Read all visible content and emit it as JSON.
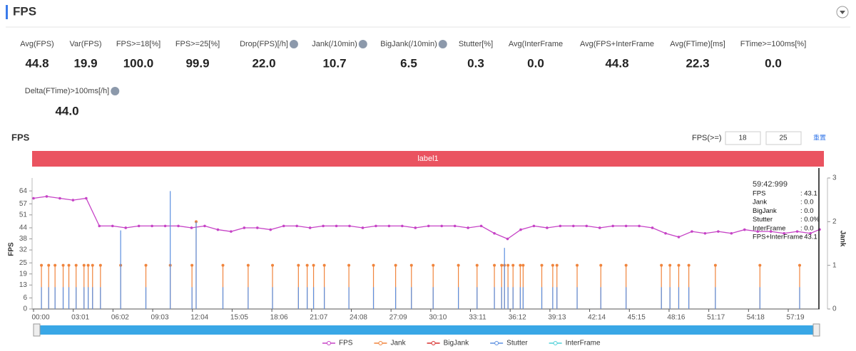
{
  "header": {
    "title": "FPS"
  },
  "metrics": [
    {
      "label": "Avg(FPS)",
      "value": "44.8",
      "help": false
    },
    {
      "label": "Var(FPS)",
      "value": "19.9",
      "help": false
    },
    {
      "label": "FPS>=18[%]",
      "value": "100.0",
      "help": false
    },
    {
      "label": "FPS>=25[%]",
      "value": "99.9",
      "help": false
    },
    {
      "label": "Drop(FPS)[/h]",
      "value": "22.0",
      "help": true
    },
    {
      "label": "Jank(/10min)",
      "value": "10.7",
      "help": true
    },
    {
      "label": "BigJank(/10min)",
      "value": "6.5",
      "help": true
    },
    {
      "label": "Stutter[%]",
      "value": "0.3",
      "help": false
    },
    {
      "label": "Avg(InterFrame",
      "value": "0.0",
      "help": false
    },
    {
      "label": "Avg(FPS+InterFrame",
      "value": "44.8",
      "help": false
    },
    {
      "label": "Avg(FTime)[ms]",
      "value": "22.3",
      "help": false
    },
    {
      "label": "FTime>=100ms[%]",
      "value": "0.0",
      "help": false
    },
    {
      "label": "Delta(FTime)>100ms[/h]",
      "value": "44.0",
      "help": true
    }
  ],
  "controls": {
    "label": "FPS(>=)",
    "inputs": [
      18,
      25
    ],
    "reset": "重置"
  },
  "band": {
    "label": "label1"
  },
  "tooltip": {
    "time": "59:42:999",
    "rows": [
      {
        "label": "FPS",
        "value": ": 43.1"
      },
      {
        "label": "Jank",
        "value": ": 0.0"
      },
      {
        "label": "BigJank",
        "value": ": 0.0"
      },
      {
        "label": "Stutter",
        "value": ": 0.0%"
      },
      {
        "label": "InterFrame",
        "value": ": 0.0"
      },
      {
        "label": "FPS+InterFrame",
        "value": ": 43.1"
      }
    ]
  },
  "chart_data": {
    "type": "line",
    "title": "FPS",
    "y_label": "FPS",
    "y2_label": "Jank",
    "xlim": [
      0,
      3582
    ],
    "ylim": [
      0,
      71
    ],
    "y2lim": [
      0,
      3
    ],
    "xticks": [
      {
        "value": 0,
        "label": "00:00"
      },
      {
        "value": 181,
        "label": "03:01"
      },
      {
        "value": 362,
        "label": "06:02"
      },
      {
        "value": 543,
        "label": "09:03"
      },
      {
        "value": 724,
        "label": "12:04"
      },
      {
        "value": 905,
        "label": "15:05"
      },
      {
        "value": 1086,
        "label": "18:06"
      },
      {
        "value": 1267,
        "label": "21:07"
      },
      {
        "value": 1448,
        "label": "24:08"
      },
      {
        "value": 1629,
        "label": "27:09"
      },
      {
        "value": 1810,
        "label": "30:10"
      },
      {
        "value": 1991,
        "label": "33:11"
      },
      {
        "value": 2172,
        "label": "36:12"
      },
      {
        "value": 2353,
        "label": "39:13"
      },
      {
        "value": 2534,
        "label": "42:14"
      },
      {
        "value": 2715,
        "label": "45:15"
      },
      {
        "value": 2896,
        "label": "48:16"
      },
      {
        "value": 3077,
        "label": "51:17"
      },
      {
        "value": 3258,
        "label": "54:18"
      },
      {
        "value": 3439,
        "label": "57:19"
      }
    ],
    "yticks": [
      0,
      6,
      13,
      19,
      25,
      32,
      38,
      44,
      51,
      57,
      64
    ],
    "y2ticks": [
      0,
      1,
      2,
      3
    ],
    "series": [
      {
        "name": "FPS",
        "color": "#c643c6",
        "x": [
          0,
          60,
          120,
          180,
          240,
          300,
          360,
          420,
          480,
          540,
          600,
          660,
          720,
          780,
          840,
          900,
          960,
          1020,
          1080,
          1140,
          1200,
          1260,
          1320,
          1380,
          1440,
          1500,
          1560,
          1620,
          1680,
          1740,
          1800,
          1860,
          1920,
          1980,
          2040,
          2100,
          2160,
          2220,
          2280,
          2340,
          2400,
          2460,
          2520,
          2580,
          2640,
          2700,
          2760,
          2820,
          2880,
          2940,
          3000,
          3060,
          3120,
          3180,
          3240,
          3300,
          3360,
          3420,
          3480,
          3540,
          3582
        ],
        "values": [
          60,
          61,
          60,
          59,
          60,
          45,
          45,
          44,
          45,
          45,
          45,
          45,
          44,
          45,
          43,
          42,
          44,
          44,
          43,
          45,
          45,
          44,
          45,
          45,
          45,
          44,
          45,
          45,
          45,
          44,
          45,
          45,
          45,
          44,
          45,
          41,
          38,
          43,
          45,
          44,
          45,
          45,
          45,
          44,
          45,
          45,
          45,
          44,
          41,
          39,
          42,
          41,
          42,
          41,
          43,
          42,
          42,
          41,
          42,
          41,
          43.1
        ]
      },
      {
        "name": "Jank",
        "color": "#f0843c",
        "axis": "y2",
        "x": [
          36,
          69,
          98,
          135,
          161,
          194,
          230,
          249,
          269,
          305,
          397,
          512,
          623,
          722,
          741,
          863,
          978,
          1089,
          1207,
          1247,
          1276,
          1325,
          1437,
          1549,
          1650,
          1722,
          1821,
          1936,
          2021,
          2100,
          2133,
          2146,
          2162,
          2185,
          2218,
          2231,
          2316,
          2366,
          2385,
          2477,
          2585,
          2700,
          2861,
          2900,
          2940,
          2986,
          3107,
          3310,
          3491
        ],
        "values": [
          1,
          1,
          1,
          1,
          1,
          1,
          1,
          1,
          1,
          1,
          1,
          1,
          1,
          1,
          2,
          1,
          1,
          1,
          1,
          1,
          1,
          1,
          1,
          1,
          1,
          1,
          1,
          1,
          1,
          1,
          1,
          1,
          1,
          1,
          1,
          1,
          1,
          1,
          1,
          1,
          1,
          1,
          1,
          1,
          1,
          1,
          1,
          1,
          1
        ]
      },
      {
        "name": "BigJank",
        "color": "#d8312f",
        "axis": "y2",
        "x": [],
        "values": []
      },
      {
        "name": "Stutter",
        "color": "#5b8fe0",
        "axis": "y2",
        "x": [
          36,
          69,
          98,
          135,
          161,
          194,
          230,
          249,
          269,
          305,
          397,
          512,
          623,
          722,
          741,
          863,
          978,
          1089,
          1207,
          1247,
          1276,
          1325,
          1437,
          1549,
          1650,
          1722,
          1821,
          1936,
          2021,
          2100,
          2133,
          2146,
          2162,
          2185,
          2218,
          2231,
          2316,
          2366,
          2385,
          2477,
          2585,
          2700,
          2861,
          2900,
          2940,
          2986,
          3107,
          3310,
          3491
        ],
        "values": [
          0.5,
          0.5,
          0.5,
          0.5,
          0.5,
          0.5,
          0.5,
          0.5,
          0.5,
          0.5,
          1.8,
          0.5,
          2.7,
          0.5,
          2,
          0.5,
          0.5,
          0.5,
          0.5,
          0.5,
          0.5,
          0.5,
          0.5,
          0.5,
          0.5,
          0.5,
          0.5,
          0.5,
          0.5,
          0.5,
          0.5,
          1.4,
          0.5,
          0.5,
          0.5,
          0.5,
          0.5,
          0.5,
          0.5,
          0.5,
          0.5,
          0.5,
          0.5,
          0.5,
          0.5,
          0.5,
          0.5,
          0.5,
          0.5
        ]
      },
      {
        "name": "InterFrame",
        "color": "#4fd0d8",
        "axis": "y2",
        "x": [],
        "values": []
      }
    ]
  }
}
